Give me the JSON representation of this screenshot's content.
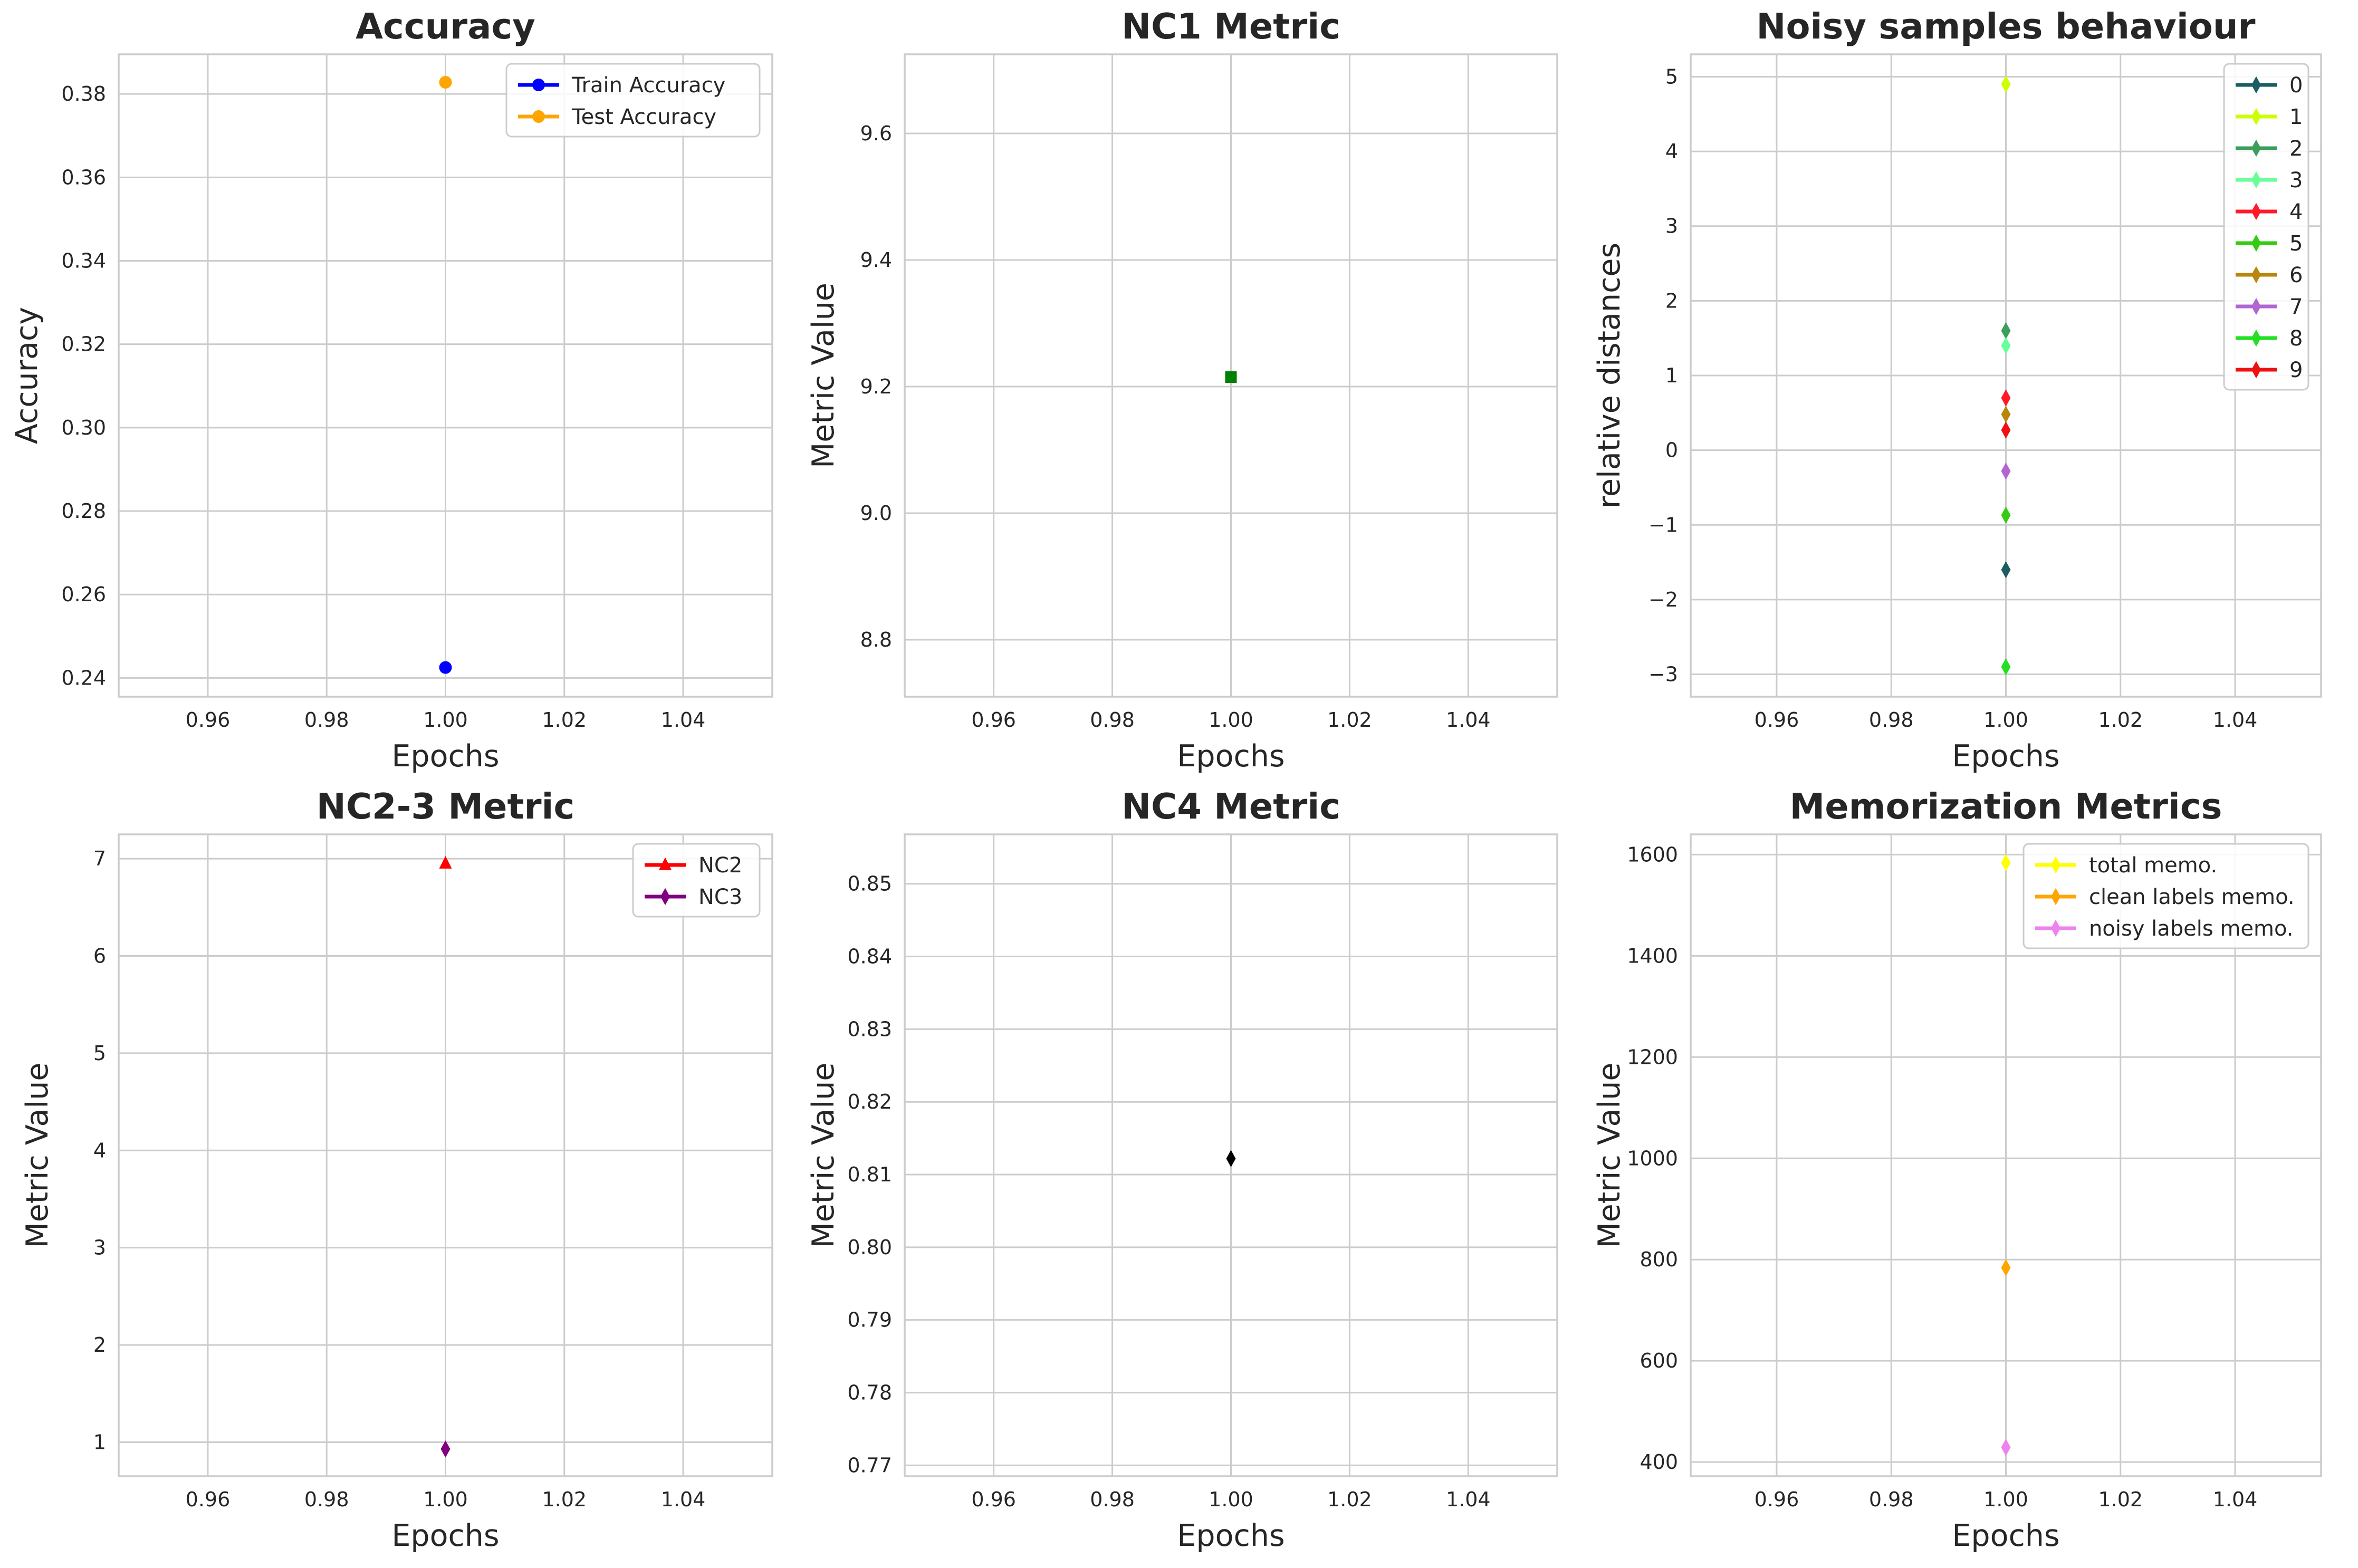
{
  "chart_data": [
    {
      "type": "line",
      "title": "Accuracy",
      "xlabel": "Epochs",
      "ylabel": "Accuracy",
      "xlim": [
        0.945,
        1.055
      ],
      "ylim": [
        0.2355,
        0.3895
      ],
      "xticks": [
        0.96,
        0.98,
        1.0,
        1.02,
        1.04
      ],
      "xtick_labels": [
        "0.96",
        "0.98",
        "1.00",
        "1.02",
        "1.04"
      ],
      "yticks": [
        0.24,
        0.26,
        0.28,
        0.3,
        0.32,
        0.34,
        0.36,
        0.38
      ],
      "ytick_labels": [
        "0.24",
        "0.26",
        "0.28",
        "0.30",
        "0.32",
        "0.34",
        "0.36",
        "0.38"
      ],
      "grid": true,
      "legend": "upper right",
      "series": [
        {
          "name": "Train Accuracy",
          "x": [
            1.0
          ],
          "y": [
            0.2425
          ],
          "color": "#0000ff",
          "marker": "circle"
        },
        {
          "name": "Test Accuracy",
          "x": [
            1.0
          ],
          "y": [
            0.3828
          ],
          "color": "#ffa500",
          "marker": "circle"
        }
      ]
    },
    {
      "type": "line",
      "title": "NC1 Metric",
      "xlabel": "Epochs",
      "ylabel": "Metric Value",
      "xlim": [
        0.945,
        1.055
      ],
      "ylim": [
        8.71,
        9.725
      ],
      "xticks": [
        0.96,
        0.98,
        1.0,
        1.02,
        1.04
      ],
      "xtick_labels": [
        "0.96",
        "0.98",
        "1.00",
        "1.02",
        "1.04"
      ],
      "yticks": [
        8.8,
        9.0,
        9.2,
        9.4,
        9.6
      ],
      "ytick_labels": [
        "8.8",
        "9.0",
        "9.2",
        "9.4",
        "9.6"
      ],
      "grid": true,
      "legend": "none",
      "series": [
        {
          "x": [
            1.0
          ],
          "y": [
            9.215
          ],
          "color": "#008000",
          "marker": "square"
        }
      ]
    },
    {
      "type": "line",
      "title": "Noisy samples behaviour",
      "xlabel": "Epochs",
      "ylabel": "relative distances",
      "xlim": [
        0.945,
        1.055
      ],
      "ylim": [
        -3.3,
        5.3
      ],
      "xticks": [
        0.96,
        0.98,
        1.0,
        1.02,
        1.04
      ],
      "xtick_labels": [
        "0.96",
        "0.98",
        "1.00",
        "1.02",
        "1.04"
      ],
      "yticks": [
        -3,
        -2,
        -1,
        0,
        1,
        2,
        3,
        4,
        5
      ],
      "ytick_labels": [
        "−3",
        "−2",
        "−1",
        "0",
        "1",
        "2",
        "3",
        "4",
        "5"
      ],
      "grid": true,
      "legend": "upper right",
      "series": [
        {
          "name": "0",
          "x": [
            1.0
          ],
          "y": [
            -1.6
          ],
          "color": "#1a5e63",
          "marker": "diamond"
        },
        {
          "name": "1",
          "x": [
            1.0
          ],
          "y": [
            4.9
          ],
          "color": "#ccff00",
          "marker": "diamond"
        },
        {
          "name": "2",
          "x": [
            1.0
          ],
          "y": [
            1.6
          ],
          "color": "#3c9e5a",
          "marker": "diamond"
        },
        {
          "name": "3",
          "x": [
            1.0
          ],
          "y": [
            1.4
          ],
          "color": "#66ff99",
          "marker": "diamond"
        },
        {
          "name": "4",
          "x": [
            1.0
          ],
          "y": [
            0.7
          ],
          "color": "#ff1a2a",
          "marker": "diamond"
        },
        {
          "name": "5",
          "x": [
            1.0
          ],
          "y": [
            -0.87
          ],
          "color": "#33cc11",
          "marker": "diamond"
        },
        {
          "name": "6",
          "x": [
            1.0
          ],
          "y": [
            0.48
          ],
          "color": "#b8860b",
          "marker": "diamond"
        },
        {
          "name": "7",
          "x": [
            1.0
          ],
          "y": [
            -0.28
          ],
          "color": "#b266d1",
          "marker": "diamond"
        },
        {
          "name": "8",
          "x": [
            1.0
          ],
          "y": [
            -2.9
          ],
          "color": "#22e022",
          "marker": "diamond"
        },
        {
          "name": "9",
          "x": [
            1.0
          ],
          "y": [
            0.27
          ],
          "color": "#ee1111",
          "marker": "diamond"
        }
      ]
    },
    {
      "type": "line",
      "title": "NC2-3 Metric",
      "xlabel": "Epochs",
      "ylabel": "Metric Value",
      "xlim": [
        0.945,
        1.055
      ],
      "ylim": [
        0.65,
        7.25
      ],
      "xticks": [
        0.96,
        0.98,
        1.0,
        1.02,
        1.04
      ],
      "xtick_labels": [
        "0.96",
        "0.98",
        "1.00",
        "1.02",
        "1.04"
      ],
      "yticks": [
        1,
        2,
        3,
        4,
        5,
        6,
        7
      ],
      "ytick_labels": [
        "1",
        "2",
        "3",
        "4",
        "5",
        "6",
        "7"
      ],
      "grid": true,
      "legend": "upper right",
      "series": [
        {
          "name": "NC2",
          "x": [
            1.0
          ],
          "y": [
            6.95
          ],
          "color": "#ff0000",
          "marker": "triangle"
        },
        {
          "name": "NC3",
          "x": [
            1.0
          ],
          "y": [
            0.93
          ],
          "color": "#800080",
          "marker": "diamond"
        }
      ]
    },
    {
      "type": "line",
      "title": "NC4 Metric",
      "xlabel": "Epochs",
      "ylabel": "Metric Value",
      "xlim": [
        0.945,
        1.055
      ],
      "ylim": [
        0.7685,
        0.8568
      ],
      "xticks": [
        0.96,
        0.98,
        1.0,
        1.02,
        1.04
      ],
      "xtick_labels": [
        "0.96",
        "0.98",
        "1.00",
        "1.02",
        "1.04"
      ],
      "yticks": [
        0.77,
        0.78,
        0.79,
        0.8,
        0.81,
        0.82,
        0.83,
        0.84,
        0.85
      ],
      "ytick_labels": [
        "0.77",
        "0.78",
        "0.79",
        "0.80",
        "0.81",
        "0.82",
        "0.83",
        "0.84",
        "0.85"
      ],
      "grid": true,
      "legend": "none",
      "series": [
        {
          "x": [
            1.0
          ],
          "y": [
            0.8122
          ],
          "color": "#000000",
          "marker": "diamond"
        }
      ]
    },
    {
      "type": "line",
      "title": "Memorization Metrics",
      "xlabel": "Epochs",
      "ylabel": "Metric Value",
      "xlim": [
        0.945,
        1.055
      ],
      "ylim": [
        372,
        1640
      ],
      "xticks": [
        0.96,
        0.98,
        1.0,
        1.02,
        1.04
      ],
      "xtick_labels": [
        "0.96",
        "0.98",
        "1.00",
        "1.02",
        "1.04"
      ],
      "yticks": [
        400,
        600,
        800,
        1000,
        1200,
        1400,
        1600
      ],
      "ytick_labels": [
        "400",
        "600",
        "800",
        "1000",
        "1200",
        "1400",
        "1600"
      ],
      "grid": true,
      "legend": "upper right",
      "series": [
        {
          "name": "total memo.",
          "x": [
            1.0
          ],
          "y": [
            1584
          ],
          "color": "#ffff00",
          "marker": "diamond"
        },
        {
          "name": "clean labels memo.",
          "x": [
            1.0
          ],
          "y": [
            784
          ],
          "color": "#ffa500",
          "marker": "diamond"
        },
        {
          "name": "noisy labels memo.",
          "x": [
            1.0
          ],
          "y": [
            429
          ],
          "color": "#ee82ee",
          "marker": "diamond"
        }
      ]
    }
  ]
}
